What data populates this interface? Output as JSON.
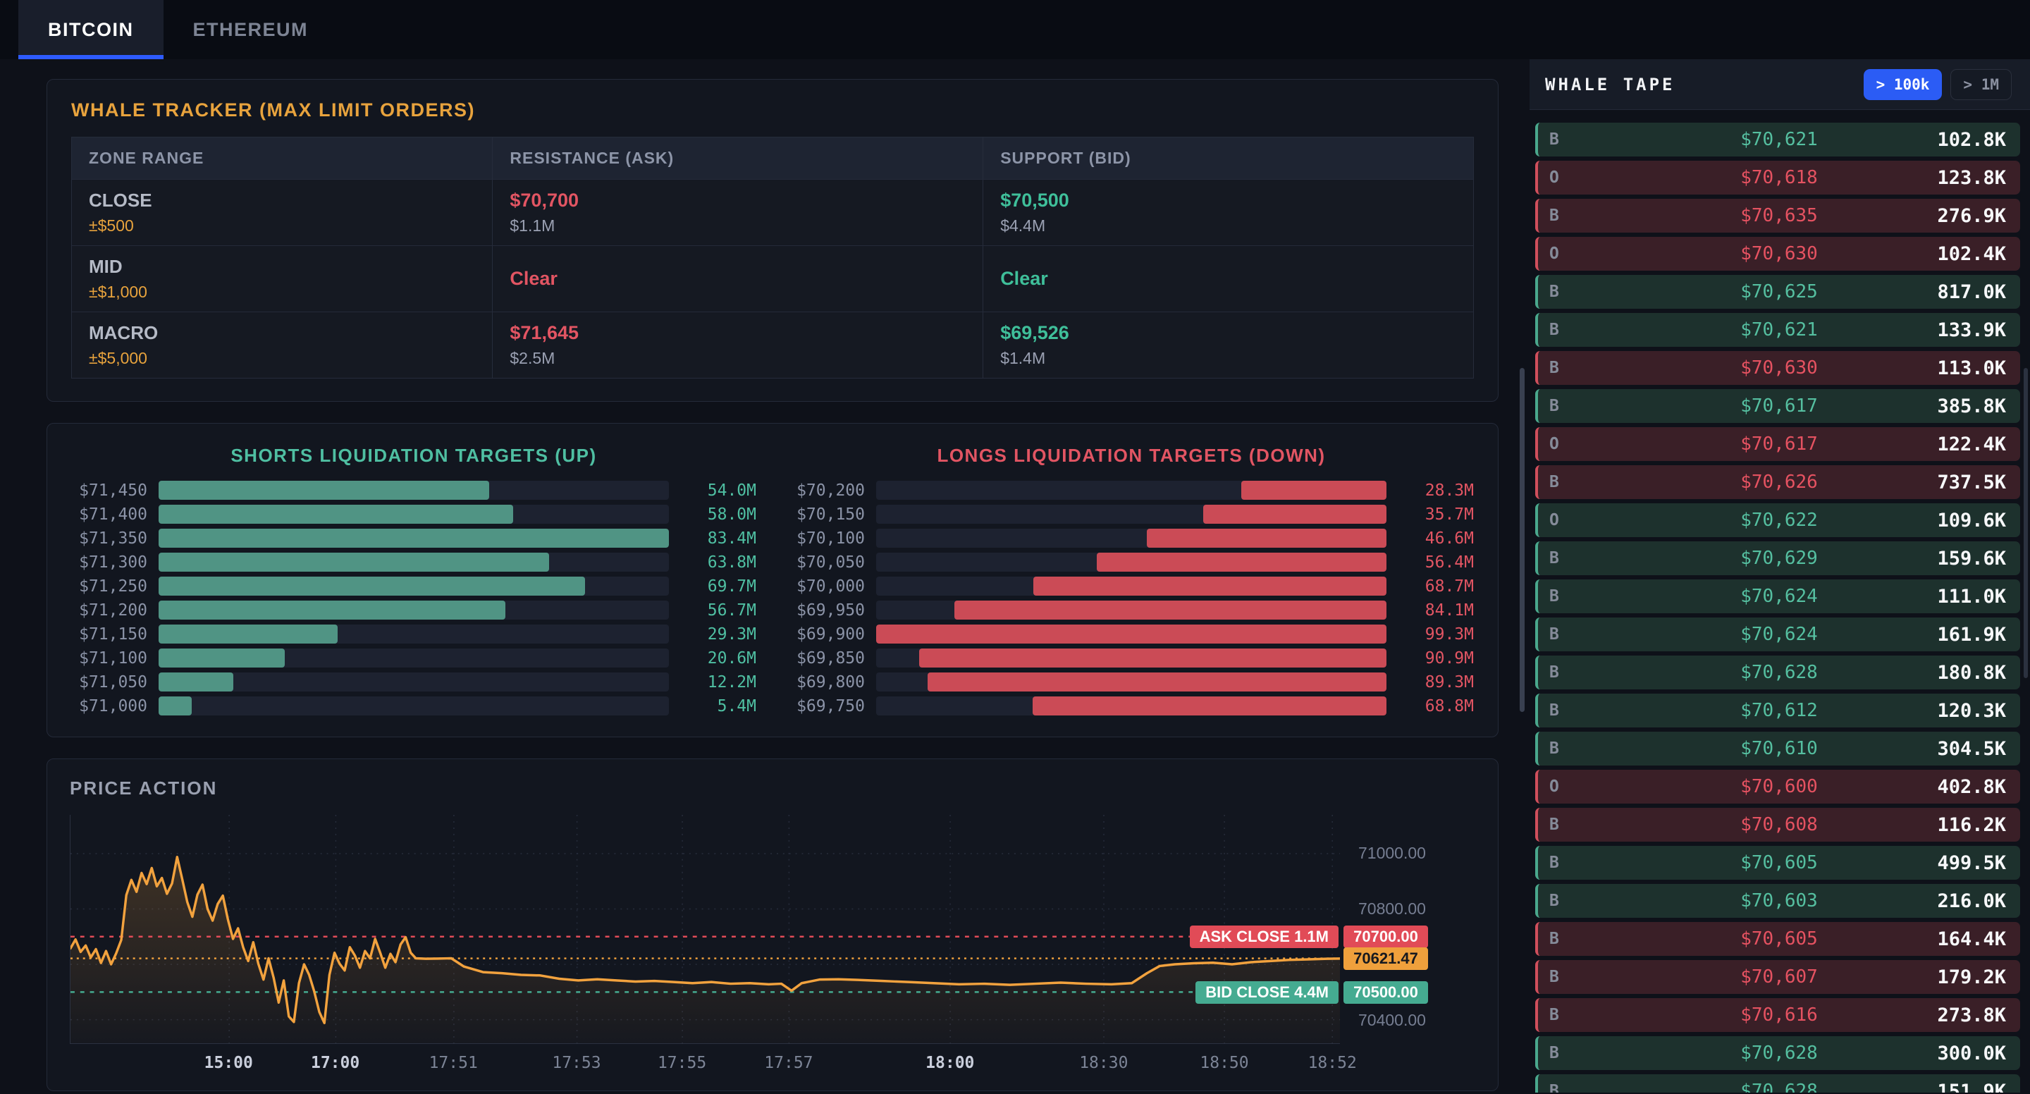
{
  "tabs": [
    {
      "label": "BITCOIN",
      "active": true
    },
    {
      "label": "ETHEREUM",
      "active": false
    }
  ],
  "whale_tracker": {
    "title": "WHALE TRACKER (MAX LIMIT ORDERS)",
    "columns": [
      "ZONE RANGE",
      "RESISTANCE (ASK)",
      "SUPPORT (BID)"
    ],
    "rows": [
      {
        "zone": "CLOSE",
        "range": "±$500",
        "ask_price": "$70,700",
        "ask_size": "$1.1M",
        "bid_price": "$70,500",
        "bid_size": "$4.4M"
      },
      {
        "zone": "MID",
        "range": "±$1,000",
        "ask_price": "Clear",
        "ask_size": "",
        "bid_price": "Clear",
        "bid_size": ""
      },
      {
        "zone": "MACRO",
        "range": "±$5,000",
        "ask_price": "$71,645",
        "ask_size": "$2.5M",
        "bid_price": "$69,526",
        "bid_size": "$1.4M"
      }
    ]
  },
  "chart_data": [
    {
      "type": "bar",
      "title": "SHORTS LIQUIDATION TARGETS (UP)",
      "orientation": "horizontal",
      "align": "left",
      "bar_color": "#509484",
      "value_color": "#4fbfa2",
      "categories": [
        "$71,450",
        "$71,400",
        "$71,350",
        "$71,300",
        "$71,250",
        "$71,200",
        "$71,150",
        "$71,100",
        "$71,050",
        "$71,000"
      ],
      "values": [
        54.0,
        58.0,
        83.4,
        63.8,
        69.7,
        56.7,
        29.3,
        20.6,
        12.2,
        5.4
      ],
      "unit": "M"
    },
    {
      "type": "bar",
      "title": "LONGS LIQUIDATION TARGETS (DOWN)",
      "orientation": "horizontal",
      "align": "right",
      "bar_color": "#cb4b56",
      "value_color": "#e25563",
      "categories": [
        "$70,200",
        "$70,150",
        "$70,100",
        "$70,050",
        "$70,000",
        "$69,950",
        "$69,900",
        "$69,850",
        "$69,800",
        "$69,750"
      ],
      "values": [
        28.3,
        35.7,
        46.6,
        56.4,
        68.7,
        84.1,
        99.3,
        90.9,
        89.3,
        68.8
      ],
      "unit": "M"
    },
    {
      "type": "line",
      "title": "PRICE ACTION",
      "line_color": "#f2a23e",
      "y_range": [
        70315,
        71140
      ],
      "y_ticks": [
        {
          "label": "71000.00",
          "price": 71000
        },
        {
          "label": "70800.00",
          "price": 70800
        },
        {
          "label": "70600.00",
          "price": 70600
        },
        {
          "label": "70400.00",
          "price": 70400
        }
      ],
      "x_ticks": [
        {
          "label": "15:00",
          "f": 0.125,
          "major": true
        },
        {
          "label": "17:00",
          "f": 0.209,
          "major": true
        },
        {
          "label": "17:51",
          "f": 0.302,
          "major": false
        },
        {
          "label": "17:53",
          "f": 0.399,
          "major": false
        },
        {
          "label": "17:55",
          "f": 0.482,
          "major": false
        },
        {
          "label": "17:57",
          "f": 0.566,
          "major": false
        },
        {
          "label": "18:00",
          "f": 0.693,
          "major": true
        },
        {
          "label": "18:30",
          "f": 0.814,
          "major": false
        },
        {
          "label": "18:50",
          "f": 0.909,
          "major": false
        },
        {
          "label": "18:52",
          "f": 0.994,
          "major": false
        }
      ],
      "levels": [
        {
          "name": "ask",
          "price": 70700,
          "color": "#e14b57",
          "badge": "70700.00",
          "label": "ASK CLOSE 1.1M",
          "dash": "6 8",
          "dark_text": false
        },
        {
          "name": "last",
          "price": 70621.47,
          "color": "#efa03c",
          "badge": "70621.47",
          "label": "",
          "dash": "3 6",
          "dark_text": true
        },
        {
          "name": "bid",
          "price": 70500,
          "color": "#45ab91",
          "badge": "70500.00",
          "label": "BID CLOSE 4.4M",
          "dash": "6 8",
          "dark_text": false
        }
      ],
      "points": [
        [
          0.0,
          70658
        ],
        [
          0.004,
          70690
        ],
        [
          0.008,
          70645
        ],
        [
          0.012,
          70668
        ],
        [
          0.016,
          70625
        ],
        [
          0.02,
          70655
        ],
        [
          0.024,
          70605
        ],
        [
          0.028,
          70648
        ],
        [
          0.032,
          70600
        ],
        [
          0.036,
          70640
        ],
        [
          0.04,
          70688
        ],
        [
          0.044,
          70850
        ],
        [
          0.048,
          70905
        ],
        [
          0.052,
          70862
        ],
        [
          0.056,
          70930
        ],
        [
          0.06,
          70890
        ],
        [
          0.064,
          70948
        ],
        [
          0.068,
          70882
        ],
        [
          0.072,
          70912
        ],
        [
          0.076,
          70855
        ],
        [
          0.08,
          70892
        ],
        [
          0.084,
          70988
        ],
        [
          0.088,
          70908
        ],
        [
          0.092,
          70825
        ],
        [
          0.096,
          70772
        ],
        [
          0.1,
          70852
        ],
        [
          0.104,
          70888
        ],
        [
          0.108,
          70800
        ],
        [
          0.112,
          70758
        ],
        [
          0.116,
          70818
        ],
        [
          0.12,
          70848
        ],
        [
          0.124,
          70762
        ],
        [
          0.128,
          70692
        ],
        [
          0.132,
          70730
        ],
        [
          0.136,
          70662
        ],
        [
          0.14,
          70612
        ],
        [
          0.144,
          70680
        ],
        [
          0.148,
          70602
        ],
        [
          0.152,
          70545
        ],
        [
          0.156,
          70622
        ],
        [
          0.16,
          70552
        ],
        [
          0.164,
          70462
        ],
        [
          0.168,
          70542
        ],
        [
          0.172,
          70412
        ],
        [
          0.176,
          70392
        ],
        [
          0.18,
          70532
        ],
        [
          0.184,
          70600
        ],
        [
          0.188,
          70562
        ],
        [
          0.192,
          70502
        ],
        [
          0.196,
          70428
        ],
        [
          0.2,
          70388
        ],
        [
          0.204,
          70562
        ],
        [
          0.208,
          70642
        ],
        [
          0.212,
          70602
        ],
        [
          0.216,
          70578
        ],
        [
          0.22,
          70662
        ],
        [
          0.224,
          70632
        ],
        [
          0.228,
          70588
        ],
        [
          0.232,
          70648
        ],
        [
          0.236,
          70622
        ],
        [
          0.24,
          70692
        ],
        [
          0.244,
          70642
        ],
        [
          0.248,
          70588
        ],
        [
          0.252,
          70638
        ],
        [
          0.256,
          70608
        ],
        [
          0.26,
          70672
        ],
        [
          0.264,
          70698
        ],
        [
          0.268,
          70642
        ],
        [
          0.272,
          70622
        ],
        [
          0.28,
          70620
        ],
        [
          0.29,
          70621
        ],
        [
          0.3,
          70622
        ],
        [
          0.31,
          70592
        ],
        [
          0.325,
          70572
        ],
        [
          0.34,
          70568
        ],
        [
          0.355,
          70562
        ],
        [
          0.37,
          70560
        ],
        [
          0.385,
          70548
        ],
        [
          0.4,
          70542
        ],
        [
          0.415,
          70546
        ],
        [
          0.43,
          70542
        ],
        [
          0.445,
          70538
        ],
        [
          0.46,
          70540
        ],
        [
          0.475,
          70536
        ],
        [
          0.49,
          70532
        ],
        [
          0.505,
          70536
        ],
        [
          0.52,
          70530
        ],
        [
          0.535,
          70532
        ],
        [
          0.55,
          70528
        ],
        [
          0.56,
          70530
        ],
        [
          0.568,
          70505
        ],
        [
          0.576,
          70532
        ],
        [
          0.59,
          70545
        ],
        [
          0.605,
          70546
        ],
        [
          0.62,
          70544
        ],
        [
          0.64,
          70540
        ],
        [
          0.66,
          70536
        ],
        [
          0.68,
          70532
        ],
        [
          0.7,
          70528
        ],
        [
          0.72,
          70530
        ],
        [
          0.74,
          70526
        ],
        [
          0.76,
          70530
        ],
        [
          0.78,
          70534
        ],
        [
          0.8,
          70530
        ],
        [
          0.82,
          70528
        ],
        [
          0.836,
          70532
        ],
        [
          0.848,
          70568
        ],
        [
          0.858,
          70594
        ],
        [
          0.87,
          70600
        ],
        [
          0.885,
          70604
        ],
        [
          0.9,
          70606
        ],
        [
          0.915,
          70600
        ],
        [
          0.93,
          70608
        ],
        [
          0.945,
          70612
        ],
        [
          0.96,
          70616
        ],
        [
          0.975,
          70618
        ],
        [
          0.99,
          70620
        ],
        [
          1.0,
          70621
        ]
      ]
    }
  ],
  "whale_tape": {
    "title": "WHALE TAPE",
    "filters": [
      {
        "label": "> 100k",
        "active": true
      },
      {
        "label": "> 1M",
        "active": false
      }
    ],
    "rows": [
      {
        "side": "B",
        "price": "$70,621",
        "size": "102.8K",
        "tone": "green"
      },
      {
        "side": "O",
        "price": "$70,618",
        "size": "123.8K",
        "tone": "red"
      },
      {
        "side": "B",
        "price": "$70,635",
        "size": "276.9K",
        "tone": "red"
      },
      {
        "side": "O",
        "price": "$70,630",
        "size": "102.4K",
        "tone": "red"
      },
      {
        "side": "B",
        "price": "$70,625",
        "size": "817.0K",
        "tone": "green"
      },
      {
        "side": "B",
        "price": "$70,621",
        "size": "133.9K",
        "tone": "green"
      },
      {
        "side": "B",
        "price": "$70,630",
        "size": "113.0K",
        "tone": "red"
      },
      {
        "side": "B",
        "price": "$70,617",
        "size": "385.8K",
        "tone": "green"
      },
      {
        "side": "O",
        "price": "$70,617",
        "size": "122.4K",
        "tone": "red"
      },
      {
        "side": "B",
        "price": "$70,626",
        "size": "737.5K",
        "tone": "red"
      },
      {
        "side": "O",
        "price": "$70,622",
        "size": "109.6K",
        "tone": "green"
      },
      {
        "side": "B",
        "price": "$70,629",
        "size": "159.6K",
        "tone": "green"
      },
      {
        "side": "B",
        "price": "$70,624",
        "size": "111.0K",
        "tone": "green"
      },
      {
        "side": "B",
        "price": "$70,624",
        "size": "161.9K",
        "tone": "green"
      },
      {
        "side": "B",
        "price": "$70,628",
        "size": "180.8K",
        "tone": "green"
      },
      {
        "side": "B",
        "price": "$70,612",
        "size": "120.3K",
        "tone": "green"
      },
      {
        "side": "B",
        "price": "$70,610",
        "size": "304.5K",
        "tone": "green"
      },
      {
        "side": "O",
        "price": "$70,600",
        "size": "402.8K",
        "tone": "red"
      },
      {
        "side": "B",
        "price": "$70,608",
        "size": "116.2K",
        "tone": "red"
      },
      {
        "side": "B",
        "price": "$70,605",
        "size": "499.5K",
        "tone": "green"
      },
      {
        "side": "B",
        "price": "$70,603",
        "size": "216.0K",
        "tone": "green"
      },
      {
        "side": "B",
        "price": "$70,605",
        "size": "164.4K",
        "tone": "red"
      },
      {
        "side": "B",
        "price": "$70,607",
        "size": "179.2K",
        "tone": "red"
      },
      {
        "side": "B",
        "price": "$70,616",
        "size": "273.8K",
        "tone": "red"
      },
      {
        "side": "B",
        "price": "$70,628",
        "size": "300.0K",
        "tone": "green"
      },
      {
        "side": "B",
        "price": "$70,628",
        "size": "151.9K",
        "tone": "green"
      }
    ]
  }
}
